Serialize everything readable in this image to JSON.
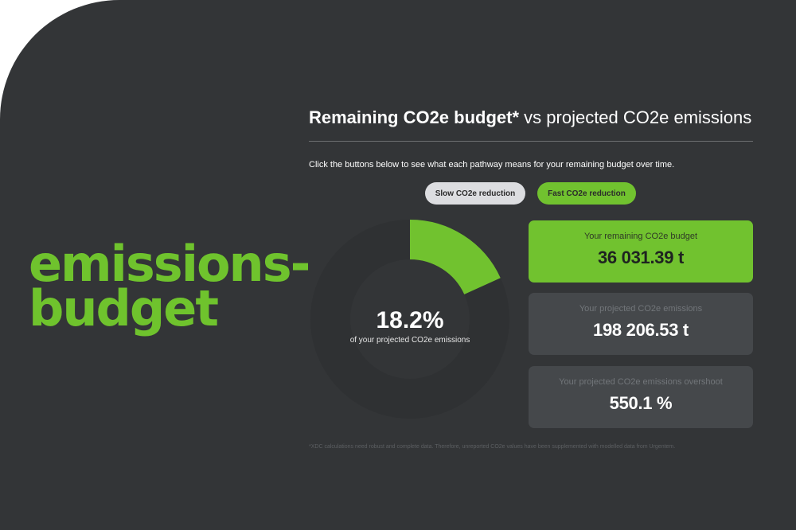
{
  "brand": {
    "line1": "emissions-",
    "line2": "budget",
    "color": "#6fc32d"
  },
  "header": {
    "title_bold": "Remaining CO2e budget*",
    "title_rest": " vs projected CO2e emissions",
    "instructions": "Click the buttons below to see what each pathway means for your remaining budget over time."
  },
  "pathways": {
    "slow_label": "Slow CO2e reduction",
    "fast_label": "Fast CO2e reduction",
    "selected": "fast"
  },
  "donut": {
    "percent": 18.2,
    "percent_label": "18.2%",
    "caption": "of your projected CO2e emissions",
    "fill_color": "#71c22f",
    "track_color": "#2f3133"
  },
  "cards": [
    {
      "label": "Your remaining CO2e budget",
      "value": "36 031.39 t"
    },
    {
      "label": "Your projected CO2e emissions",
      "value": "198 206.53 t"
    },
    {
      "label": "Your projected CO2e emissions overshoot",
      "value": "550.1 %"
    }
  ],
  "footnote": "*XDC calculations need robust and complete data. Therefore, unreported CO2e values have been supplemented with modelled data from Urgentem.",
  "colors": {
    "background": "#333537",
    "accent": "#71c22f",
    "card": "#45484b"
  }
}
